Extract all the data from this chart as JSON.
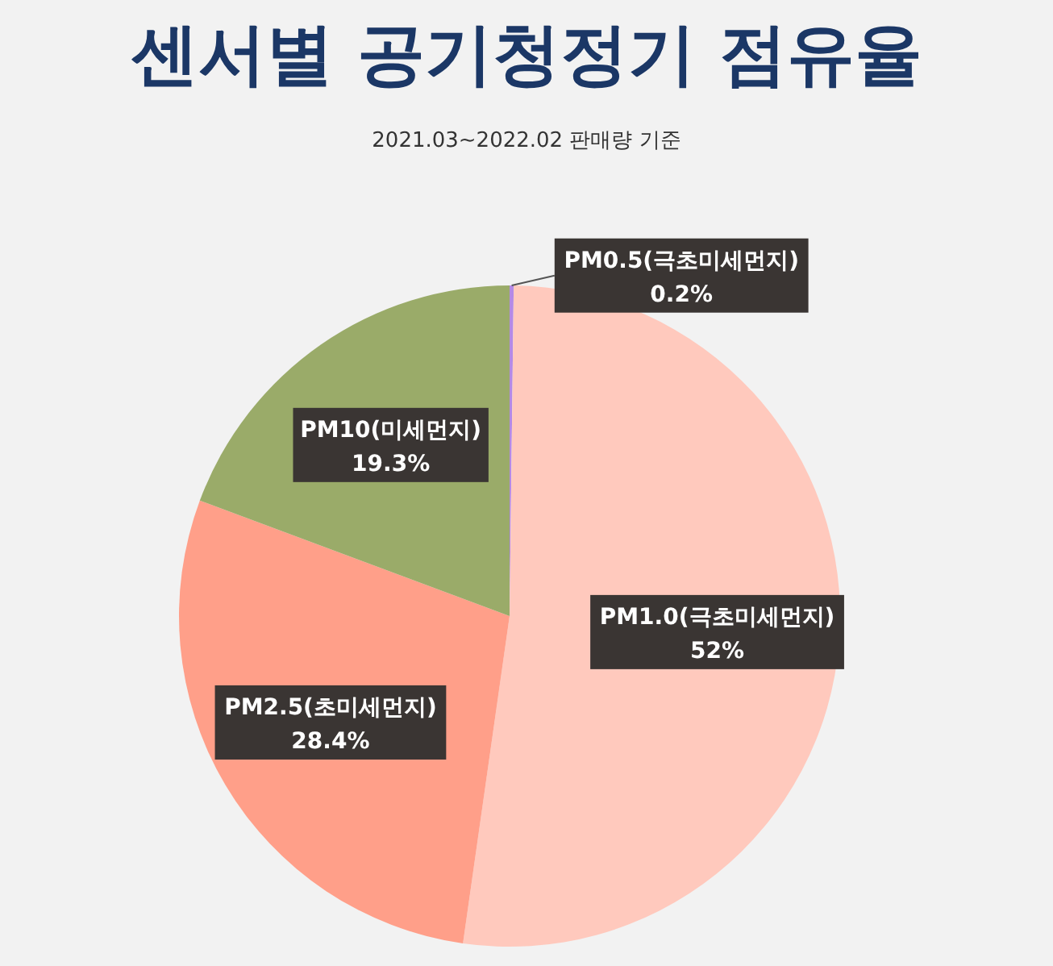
{
  "chart_data": {
    "type": "pie",
    "title": "센서별 공기청정기 점유율",
    "subtitle": "2021.03~2022.02 판매량 기준",
    "categories": [
      "PM0.5(극초미세먼지)",
      "PM1.0(극초미세먼지)",
      "PM2.5(초미세먼지)",
      "PM10(미세먼지)"
    ],
    "values": [
      0.2,
      52,
      28.4,
      19.3
    ],
    "colors": [
      "#b48ae6",
      "#ffc9bd",
      "#ff9f89",
      "#9aab69"
    ],
    "value_labels": [
      "0.2%",
      "52%",
      "28.4%",
      "19.3%"
    ]
  }
}
